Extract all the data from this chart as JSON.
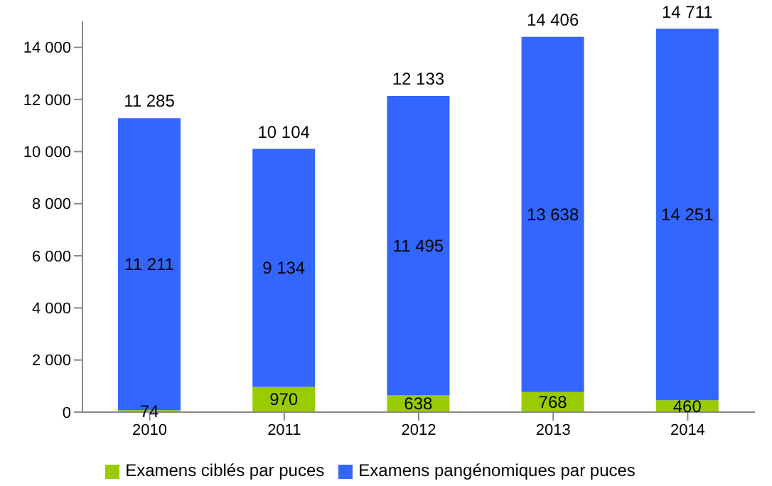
{
  "chart_data": {
    "type": "bar",
    "stacked": true,
    "categories": [
      "2010",
      "2011",
      "2012",
      "2013",
      "2014"
    ],
    "series": [
      {
        "name": "Examens ciblés par puces",
        "color": "#99cc00",
        "values": [
          74,
          970,
          638,
          768,
          460
        ],
        "value_labels": [
          "74",
          "970",
          "638",
          "768",
          "460"
        ]
      },
      {
        "name": "Examens pangénomiques par puces",
        "color": "#3366ff",
        "values": [
          11211,
          9134,
          11495,
          13638,
          14251
        ],
        "value_labels": [
          "11 211",
          "9 134",
          "11 495",
          "13 638",
          "14 251"
        ]
      }
    ],
    "totals": [
      "11 285",
      "10 104",
      "12 133",
      "14 406",
      "14 711"
    ],
    "ylim": [
      0,
      15000
    ],
    "yticks": [
      0,
      {
        "value": 2000,
        "label": "2 000"
      },
      {
        "value": 4000,
        "label": "4 000"
      },
      {
        "value": 6000,
        "label": "6 000"
      },
      {
        "value": 8000,
        "label": "8 000"
      },
      {
        "value": 10000,
        "label": "10 000"
      },
      {
        "value": 12000,
        "label": "12 000"
      },
      {
        "value": 14000,
        "label": "14 000"
      }
    ],
    "grid": false,
    "legend": "bottom"
  }
}
